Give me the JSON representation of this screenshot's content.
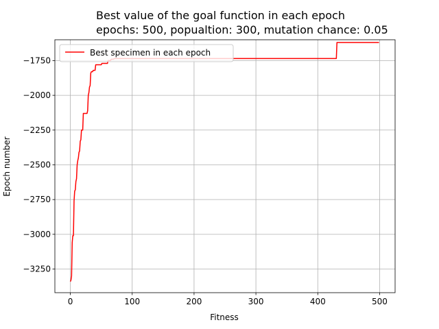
{
  "chart_data": {
    "type": "line",
    "title_line1": "Best value of the goal function in each epoch",
    "title_line2": "epochs: 500, popualtion: 300, mutation chance: 0.05",
    "xlabel": "Fitness",
    "ylabel": "Epoch number",
    "xlim": [
      -25,
      525
    ],
    "ylim": [
      -3420,
      -1600
    ],
    "xticks": [
      0,
      100,
      200,
      300,
      400,
      500
    ],
    "yticks": [
      -3250,
      -3000,
      -2750,
      -2500,
      -2250,
      -2000,
      -1750
    ],
    "grid": true,
    "legend": {
      "placement": "top-left",
      "entries": [
        "Best specimen in each epoch"
      ]
    },
    "colors": {
      "series": "#ff0000",
      "grid": "#b0b0b0"
    },
    "series": [
      {
        "name": "Best specimen in each epoch",
        "x": [
          0,
          1,
          2,
          3,
          4,
          5,
          6,
          7,
          8,
          9,
          10,
          11,
          12,
          13,
          14,
          15,
          16,
          17,
          18,
          19,
          20,
          21,
          22,
          23,
          24,
          25,
          26,
          27,
          28,
          29,
          30,
          31,
          32,
          33,
          34,
          35,
          36,
          37,
          40,
          41,
          44,
          45,
          50,
          51,
          55,
          56,
          60,
          61,
          65,
          66,
          70,
          71,
          72,
          430,
          431,
          499
        ],
        "y": [
          -3340,
          -3330,
          -3300,
          -3060,
          -3010,
          -3010,
          -2760,
          -2690,
          -2680,
          -2620,
          -2600,
          -2500,
          -2470,
          -2450,
          -2410,
          -2400,
          -2330,
          -2320,
          -2250,
          -2250,
          -2250,
          -2130,
          -2130,
          -2130,
          -2130,
          -2130,
          -2130,
          -2130,
          -2110,
          -2000,
          -1980,
          -1940,
          -1930,
          -1840,
          -1830,
          -1830,
          -1830,
          -1820,
          -1820,
          -1780,
          -1780,
          -1780,
          -1780,
          -1770,
          -1770,
          -1770,
          -1770,
          -1750,
          -1750,
          -1740,
          -1740,
          -1735,
          -1735,
          -1735,
          -1620,
          -1620
        ]
      }
    ]
  }
}
